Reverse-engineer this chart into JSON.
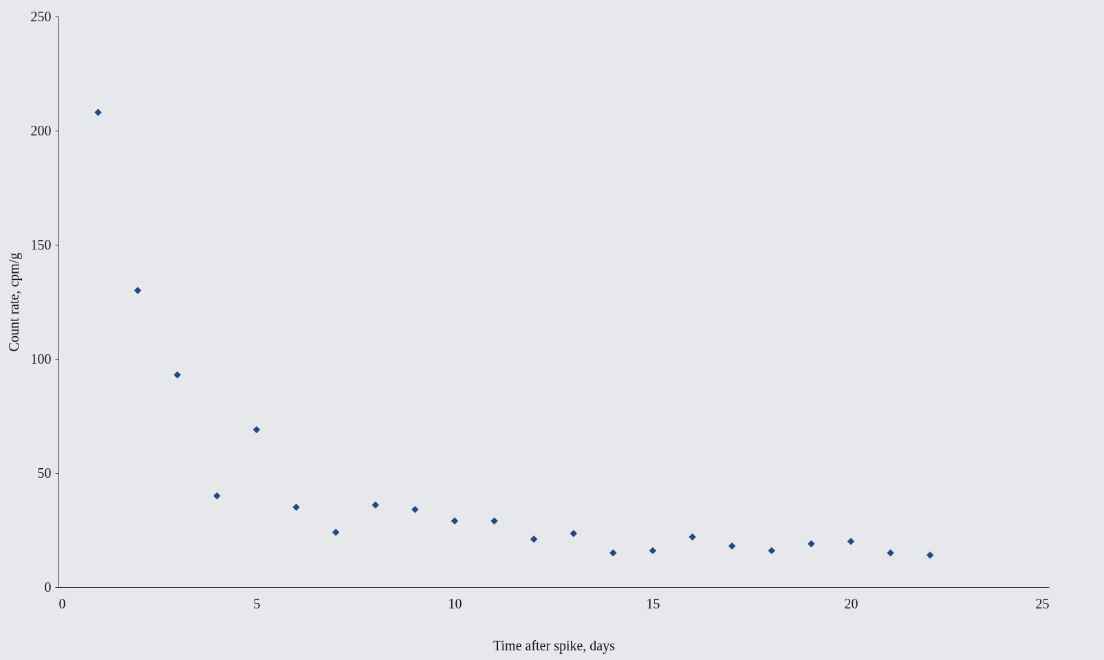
{
  "chart_data": {
    "type": "scatter",
    "xlabel": "Time after spike, days",
    "ylabel": "Count rate, cpm/g",
    "x": [
      1,
      2,
      3,
      4,
      5,
      6,
      7,
      8,
      9,
      10,
      11,
      12,
      13,
      14,
      15,
      16,
      17,
      18,
      19,
      20,
      21,
      22
    ],
    "series": [
      {
        "color": "#1f4a87",
        "values": [
          208,
          130,
          93,
          40,
          69,
          35,
          24,
          36,
          34,
          29,
          29,
          21,
          23.5,
          15,
          16,
          22,
          18,
          16,
          19,
          20,
          15,
          14
        ]
      }
    ],
    "xlim": [
      0,
      25
    ],
    "xticks": [
      0,
      5,
      10,
      15,
      20,
      25
    ],
    "ylim": [
      0,
      250
    ],
    "yticks": [
      0,
      50,
      100,
      150,
      200,
      250
    ],
    "marker": "diamond",
    "grid": false,
    "legend": false
  }
}
